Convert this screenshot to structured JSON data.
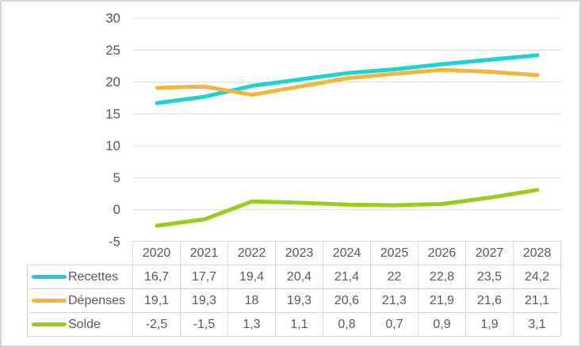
{
  "colors": {
    "recettes_line": "#1ED2CE",
    "depenses_line": "#F2B63D",
    "solde_line": "#9BCB1E",
    "gridline": "#D9D9D9",
    "axis_text": "#595959",
    "table_border": "#D9D9D9",
    "background": "#FFFFFF"
  },
  "chart_data": {
    "type": "line",
    "categories": [
      "2020",
      "2021",
      "2022",
      "2023",
      "2024",
      "2025",
      "2026",
      "2027",
      "2028"
    ],
    "series": [
      {
        "name": "Recettes",
        "color": "#1ED2CE",
        "values": [
          16.7,
          17.7,
          19.4,
          20.4,
          21.4,
          22,
          22.8,
          23.5,
          24.2
        ]
      },
      {
        "name": "Dépenses",
        "color": "#F2B63D",
        "values": [
          19.1,
          19.3,
          18,
          19.3,
          20.6,
          21.3,
          21.9,
          21.6,
          21.1
        ]
      },
      {
        "name": "Solde",
        "color": "#9BCB1E",
        "values": [
          -2.5,
          -1.5,
          1.3,
          1.1,
          0.8,
          0.7,
          0.9,
          1.9,
          3.1
        ]
      }
    ],
    "title": "",
    "xlabel": "",
    "ylabel": "",
    "ylim": [
      -5,
      30
    ],
    "ytick_step": 5,
    "yticks": [
      "30",
      "25",
      "20",
      "15",
      "10",
      "5",
      "0",
      "-5"
    ],
    "grid": true,
    "legend_position": "table-left"
  },
  "table": {
    "year_headers": [
      "2020",
      "2021",
      "2022",
      "2023",
      "2024",
      "2025",
      "2026",
      "2027",
      "2028"
    ],
    "rows": [
      {
        "label": "Recettes",
        "values": [
          "16,7",
          "17,7",
          "19,4",
          "20,4",
          "21,4",
          "22",
          "22,8",
          "23,5",
          "24,2"
        ]
      },
      {
        "label": "Dépenses",
        "values": [
          "19,1",
          "19,3",
          "18",
          "19,3",
          "20,6",
          "21,3",
          "21,9",
          "21,6",
          "21,1"
        ]
      },
      {
        "label": "Solde",
        "values": [
          "-2,5",
          "-1,5",
          "1,3",
          "1,1",
          "0,8",
          "0,7",
          "0,9",
          "1,9",
          "3,1"
        ]
      }
    ]
  }
}
